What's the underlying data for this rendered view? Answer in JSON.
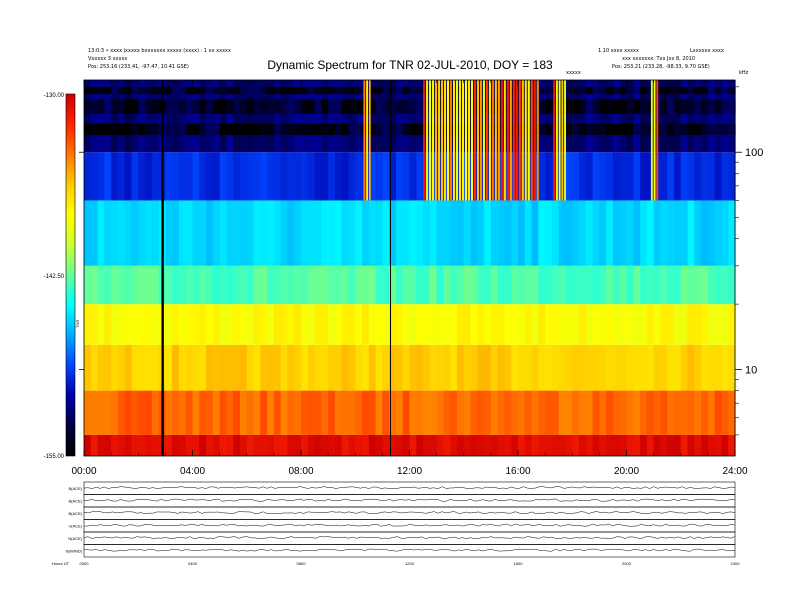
{
  "header": {
    "title": "Dynamic Spectrum for TNR 02-JUL-2010, DOY = 183",
    "top_left_line1": "13:0:3 • xxxx jxxxxx bxxxxxxx xxxxx (xxxx) : 1 xx xxxxx",
    "top_left_line2": "Vxxxxx 3 xxxxx",
    "top_left_line3": "Pos: 253.16 (233.41, -97.47, 10.41 GSE)",
    "top_right_line1": "1.10 xxxx xxxxx",
    "top_right_line2": "xxx xxxxxxx: Txx Jxx 8, 2010",
    "top_right_line3": "Pos: 253.21 (233.28, -98.33, 9.70 GSE)",
    "top_right_code": "Lxxxxxx xxxx",
    "marker_label": "xxxxx",
    "khz_label": "kHz"
  },
  "colorbar": {
    "tick_labels": [
      "-130.00",
      "-142.50",
      "-155.00"
    ],
    "unit_label": "TNR"
  },
  "colors": {
    "spectrum_stops": [
      "#cc0000",
      "#ff2200",
      "#ff7700",
      "#ffcc00",
      "#ffff00",
      "#ccff33",
      "#66ff99",
      "#00ffff",
      "#00aaff",
      "#0044ff",
      "#0000aa",
      "#000040",
      "#000000"
    ]
  },
  "chart_data": [
    {
      "type": "heatmap",
      "title": "Dynamic Spectrum for TNR 02-JUL-2010, DOY = 183",
      "x_tick_labels": [
        "00:00",
        "04:00",
        "08:00",
        "12:00",
        "16:00",
        "20:00",
        "24:00"
      ],
      "x_range_hours": [
        0,
        24
      ],
      "y_scale": "log",
      "y_tick_labels": [
        "100",
        "10"
      ],
      "y_range_khz": [
        4,
        215
      ],
      "color_range_db": [
        -155.0,
        -130.0
      ],
      "colorbar_ticks": [
        -130.0,
        -142.5,
        -155.0
      ],
      "background_bands": [
        {
          "freq_khz": [
            4,
            5
          ],
          "level": 0.03
        },
        {
          "freq_khz": [
            5,
            8
          ],
          "level": 0.15
        },
        {
          "freq_khz": [
            8,
            13
          ],
          "level": 0.26
        },
        {
          "freq_khz": [
            13,
            20
          ],
          "level": 0.33
        },
        {
          "freq_khz": [
            20,
            30
          ],
          "level": 0.52
        },
        {
          "freq_khz": [
            30,
            60
          ],
          "level": 0.62
        },
        {
          "freq_khz": [
            60,
            100
          ],
          "level": 0.78
        },
        {
          "freq_khz": [
            100,
            215
          ],
          "level": 0.88
        }
      ],
      "vertical_lines_hours": [
        2.9,
        11.3
      ],
      "burst_hours": [
        [
          10.3,
          10.6
        ],
        [
          12.5,
          16.8
        ],
        [
          17.3,
          17.8
        ],
        [
          20.9,
          21.2
        ]
      ]
    },
    {
      "type": "line",
      "title": "",
      "panels": [
        {
          "label": "B(ACE)"
        },
        {
          "label": "B(ACE)"
        },
        {
          "label": "B(ACE)"
        },
        {
          "label": "V(ACE)"
        },
        {
          "label": "N(ACE)"
        },
        {
          "label": "B(WIND)"
        }
      ],
      "x_tick_labels": [
        "0000",
        "0400",
        "0800",
        "1200",
        "1600",
        "2000",
        "2400"
      ],
      "bottom_label": "Hours    UT"
    }
  ]
}
